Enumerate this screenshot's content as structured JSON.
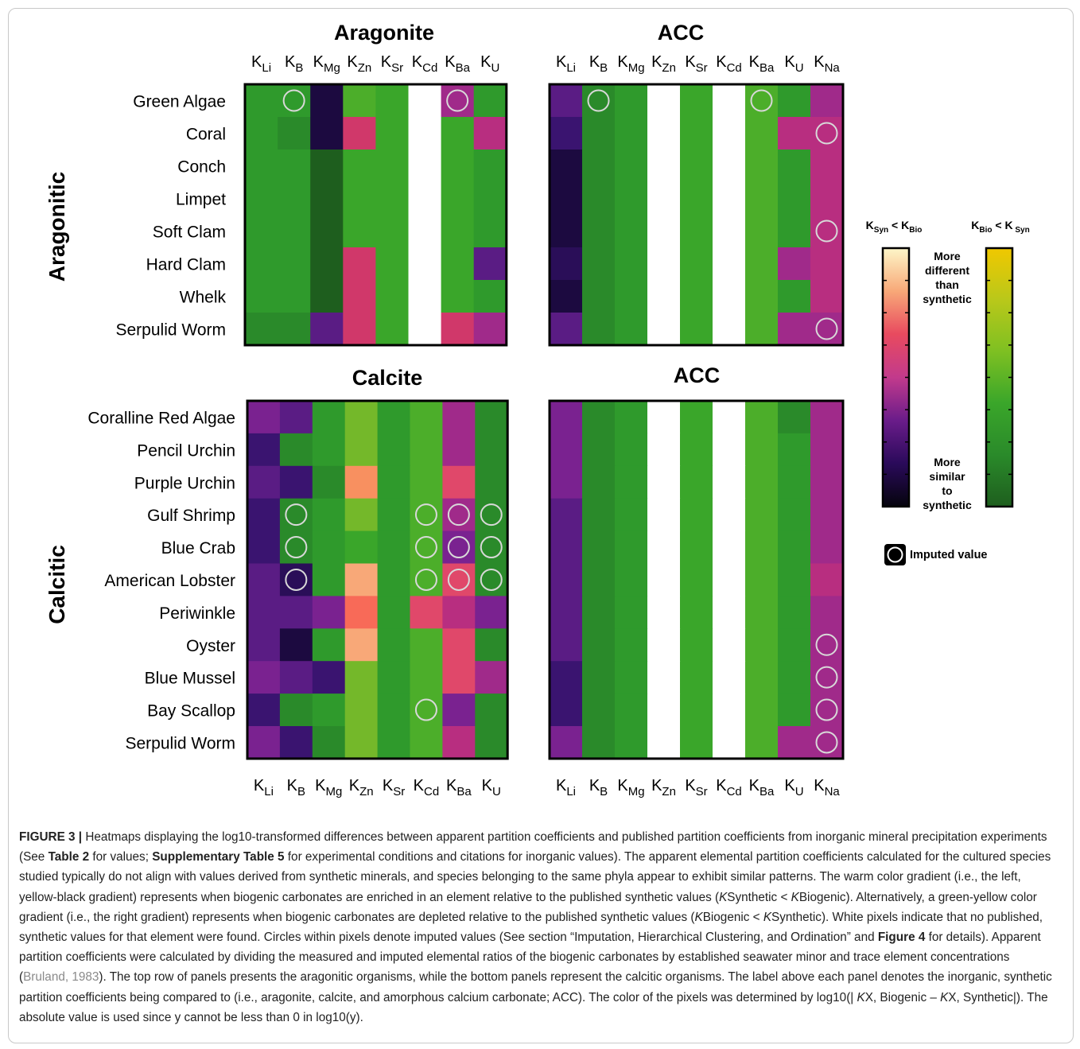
{
  "figure": {
    "panel_titles": {
      "top_left": "Aragonite",
      "top_right": "ACC",
      "bottom_left": "Calcite",
      "bottom_right": "ACC"
    },
    "group_labels": {
      "top": "Aragonitic",
      "bottom": "Calcitic"
    },
    "elements_8": [
      {
        "base": "K",
        "sub": "Li"
      },
      {
        "base": "K",
        "sub": "B"
      },
      {
        "base": "K",
        "sub": "Mg"
      },
      {
        "base": "K",
        "sub": "Zn"
      },
      {
        "base": "K",
        "sub": "Sr"
      },
      {
        "base": "K",
        "sub": "Cd"
      },
      {
        "base": "K",
        "sub": "Ba"
      },
      {
        "base": "K",
        "sub": "U"
      }
    ],
    "elements_9": [
      {
        "base": "K",
        "sub": "Li"
      },
      {
        "base": "K",
        "sub": "B"
      },
      {
        "base": "K",
        "sub": "Mg"
      },
      {
        "base": "K",
        "sub": "Zn"
      },
      {
        "base": "K",
        "sub": "Sr"
      },
      {
        "base": "K",
        "sub": "Cd"
      },
      {
        "base": "K",
        "sub": "Ba"
      },
      {
        "base": "K",
        "sub": "U"
      },
      {
        "base": "K",
        "sub": "Na"
      }
    ],
    "aragonitic_species": [
      "Green Algae",
      "Coral",
      "Conch",
      "Limpet",
      "Soft Clam",
      "Hard Clam",
      "Whelk",
      "Serpulid Worm"
    ],
    "calcitic_species": [
      "Coralline Red Algae",
      "Pencil Urchin",
      "Purple Urchin",
      "Gulf Shrimp",
      "Blue Crab",
      "American Lobster",
      "Periwinkle",
      "Oyster",
      "Blue Mussel",
      "Bay Scallop",
      "Serpulid Worm"
    ],
    "legend": {
      "left_label": {
        "base": "K",
        "sub1": "Syn",
        "mid": " < K",
        "sub2": "Bio"
      },
      "right_label": {
        "base": "K",
        "sub1": "Bio",
        "mid": " < K",
        "sub2": " Syn"
      },
      "top_text": [
        "More",
        "different",
        "than",
        "synthetic"
      ],
      "bottom_text": [
        "More",
        "similar",
        "to",
        "synthetic"
      ],
      "imputed_label": "Imputed value",
      "warm_gradient": [
        "#fdf6c8",
        "#f8a878",
        "#e84a5f",
        "#c23a8c",
        "#6a1c8a",
        "#2a0a5a",
        "#05040d"
      ],
      "green_gradient": [
        "#f0c800",
        "#b9c81a",
        "#7ec022",
        "#3aa62a",
        "#2a8a2a",
        "#1e5e1e"
      ]
    },
    "colors": {
      "dkg": "#1e5e1e",
      "g1": "#2a8a2a",
      "g2": "#2f9a2c",
      "g3": "#3aa62a",
      "g4": "#4cae2a",
      "g5": "#74b82a",
      "bk": "#1c0a40",
      "vd": "#2a0e58",
      "dp": "#3a1470",
      "pu": "#5a1c84",
      "mp": "#7a2290",
      "mg": "#a02a8a",
      "pk": "#b82e80",
      "rp": "#d0386a",
      "rd": "#e0486a",
      "sa": "#f86a58",
      "or": "#f89060",
      "po": "#f8a878",
      "wh": "#ffffff"
    },
    "heatmap_top_left": [
      [
        "g2",
        "g2",
        "bk",
        "g4",
        "g3",
        "wh",
        "mg",
        "g2"
      ],
      [
        "g2",
        "g1",
        "bk",
        "rp",
        "g3",
        "wh",
        "g3",
        "pk"
      ],
      [
        "g2",
        "g2",
        "dkg",
        "g3",
        "g3",
        "wh",
        "g3",
        "g2"
      ],
      [
        "g2",
        "g2",
        "dkg",
        "g3",
        "g3",
        "wh",
        "g3",
        "g2"
      ],
      [
        "g2",
        "g2",
        "dkg",
        "g3",
        "g3",
        "wh",
        "g3",
        "g2"
      ],
      [
        "g2",
        "g2",
        "dkg",
        "rp",
        "g3",
        "wh",
        "g3",
        "pu"
      ],
      [
        "g2",
        "g2",
        "dkg",
        "rp",
        "g3",
        "wh",
        "g3",
        "g2"
      ],
      [
        "g1",
        "g1",
        "pu",
        "rp",
        "g3",
        "wh",
        "rp",
        "mg"
      ]
    ],
    "imputed_top_left": [
      [
        0,
        1
      ],
      [
        0,
        6
      ]
    ],
    "heatmap_top_right": [
      [
        "pu",
        "g1",
        "g2",
        "wh",
        "g3",
        "wh",
        "g4",
        "g2",
        "mg"
      ],
      [
        "dp",
        "g1",
        "g2",
        "wh",
        "g3",
        "wh",
        "g4",
        "pk",
        "pk"
      ],
      [
        "bk",
        "g1",
        "g2",
        "wh",
        "g3",
        "wh",
        "g4",
        "g2",
        "pk"
      ],
      [
        "bk",
        "g1",
        "g2",
        "wh",
        "g3",
        "wh",
        "g4",
        "g2",
        "pk"
      ],
      [
        "bk",
        "g1",
        "g2",
        "wh",
        "g3",
        "wh",
        "g4",
        "g2",
        "pk"
      ],
      [
        "vd",
        "g1",
        "g2",
        "wh",
        "g3",
        "wh",
        "g4",
        "mg",
        "pk"
      ],
      [
        "bk",
        "g1",
        "g2",
        "wh",
        "g3",
        "wh",
        "g4",
        "g2",
        "pk"
      ],
      [
        "pu",
        "g1",
        "g2",
        "wh",
        "g3",
        "wh",
        "g4",
        "mg",
        "mg"
      ]
    ],
    "imputed_top_right": [
      [
        0,
        1
      ],
      [
        0,
        6
      ],
      [
        1,
        8
      ],
      [
        4,
        8
      ],
      [
        7,
        8
      ]
    ],
    "heatmap_bottom_left": [
      [
        "mp",
        "pu",
        "g2",
        "g5",
        "g2",
        "g4",
        "mg",
        "g1"
      ],
      [
        "dp",
        "g1",
        "g2",
        "g5",
        "g2",
        "g4",
        "mg",
        "g1"
      ],
      [
        "pu",
        "dp",
        "g1",
        "or",
        "g2",
        "g4",
        "rd",
        "g1"
      ],
      [
        "dp",
        "g1",
        "g2",
        "g5",
        "g2",
        "g4",
        "mg",
        "g1"
      ],
      [
        "dp",
        "g1",
        "g2",
        "g3",
        "g2",
        "g4",
        "mp",
        "g1"
      ],
      [
        "pu",
        "vd",
        "g2",
        "po",
        "g2",
        "g4",
        "rd",
        "g1"
      ],
      [
        "pu",
        "pu",
        "mp",
        "sa",
        "g2",
        "rd",
        "pk",
        "mp"
      ],
      [
        "pu",
        "bk",
        "g2",
        "po",
        "g2",
        "g4",
        "rd",
        "g1"
      ],
      [
        "mp",
        "pu",
        "dp",
        "g5",
        "g2",
        "g4",
        "rd",
        "mg"
      ],
      [
        "dp",
        "g1",
        "g2",
        "g5",
        "g2",
        "g4",
        "mp",
        "g1"
      ],
      [
        "mp",
        "dp",
        "g1",
        "g5",
        "g2",
        "g4",
        "pk",
        "g1"
      ]
    ],
    "imputed_bottom_left": [
      [
        3,
        1
      ],
      [
        3,
        5
      ],
      [
        3,
        6
      ],
      [
        3,
        7
      ],
      [
        4,
        1
      ],
      [
        4,
        5
      ],
      [
        4,
        6
      ],
      [
        4,
        7
      ],
      [
        5,
        1
      ],
      [
        5,
        5
      ],
      [
        5,
        6
      ],
      [
        5,
        7
      ],
      [
        9,
        5
      ]
    ],
    "heatmap_bottom_right": [
      [
        "mp",
        "g1",
        "g2",
        "wh",
        "g3",
        "wh",
        "g4",
        "g1",
        "mg"
      ],
      [
        "mp",
        "g1",
        "g2",
        "wh",
        "g3",
        "wh",
        "g4",
        "g2",
        "mg"
      ],
      [
        "mp",
        "g1",
        "g2",
        "wh",
        "g3",
        "wh",
        "g4",
        "g2",
        "mg"
      ],
      [
        "pu",
        "g1",
        "g2",
        "wh",
        "g3",
        "wh",
        "g4",
        "g2",
        "mg"
      ],
      [
        "pu",
        "g1",
        "g2",
        "wh",
        "g3",
        "wh",
        "g4",
        "g2",
        "mg"
      ],
      [
        "pu",
        "g1",
        "g2",
        "wh",
        "g3",
        "wh",
        "g4",
        "g2",
        "pk"
      ],
      [
        "pu",
        "g1",
        "g2",
        "wh",
        "g3",
        "wh",
        "g4",
        "g2",
        "mg"
      ],
      [
        "pu",
        "g1",
        "g2",
        "wh",
        "g3",
        "wh",
        "g4",
        "g2",
        "mg"
      ],
      [
        "dp",
        "g1",
        "g2",
        "wh",
        "g3",
        "wh",
        "g4",
        "g2",
        "mg"
      ],
      [
        "dp",
        "g1",
        "g2",
        "wh",
        "g3",
        "wh",
        "g4",
        "g2",
        "mg"
      ],
      [
        "mp",
        "g1",
        "g2",
        "wh",
        "g3",
        "wh",
        "g4",
        "mg",
        "mg"
      ]
    ],
    "imputed_bottom_right": [
      [
        7,
        8
      ],
      [
        8,
        8
      ],
      [
        9,
        8
      ],
      [
        10,
        8
      ]
    ]
  },
  "caption": {
    "label": "FIGURE 3 |",
    "t1": " Heatmaps displaying the log10-transformed differences between apparent partition coefficients and published partition coefficients from inorganic mineral precipitation experiments (See ",
    "ref1": "Table 2",
    "t2": " for values; ",
    "ref2": "Supplementary Table 5",
    "t3": " for experimental conditions and citations for inorganic values). The apparent elemental partition coefficients calculated for the cultured species studied typically do not align with values derived from synthetic minerals, and species belonging to the same phyla appear to exhibit similar patterns. The warm color gradient (i.e., the left, yellow-black gradient) represents when biogenic carbonates are enriched in an element relative to the published synthetic values (",
    "k1": "K",
    "t4": "Synthetic < ",
    "k2": "K",
    "t5": "Biogenic). Alternatively, a green-yellow color gradient (i.e., the right gradient) represents when biogenic carbonates are depleted relative to the published synthetic values (",
    "k3": "K",
    "t6": "Biogenic < ",
    "k4": "K",
    "t7": "Synthetic). White pixels indicate that no published, synthetic values for that element were found. Circles within pixels denote imputed values (See section “Imputation, Hierarchical Clustering, and Ordination” and ",
    "ref3": "Figure 4",
    "t8": " for details). Apparent partition coefficients were calculated by dividing the measured and imputed elemental ratios of the biogenic carbonates by established seawater minor and trace element concentrations (",
    "cite": "Bruland, 1983",
    "t9": "). The top row of panels presents the aragonitic organisms, while the bottom panels represent the calcitic organisms. The label above each panel denotes the inorganic, synthetic partition coefficients being compared to (i.e., aragonite, calcite, and amorphous calcium carbonate; ACC). The color of the pixels was determined by log10(| ",
    "k5": "K",
    "t10": "X, Biogenic – ",
    "k6": "K",
    "t11": "X, Synthetic|). The absolute value is used since y cannot be less than 0 in log10(y)."
  }
}
